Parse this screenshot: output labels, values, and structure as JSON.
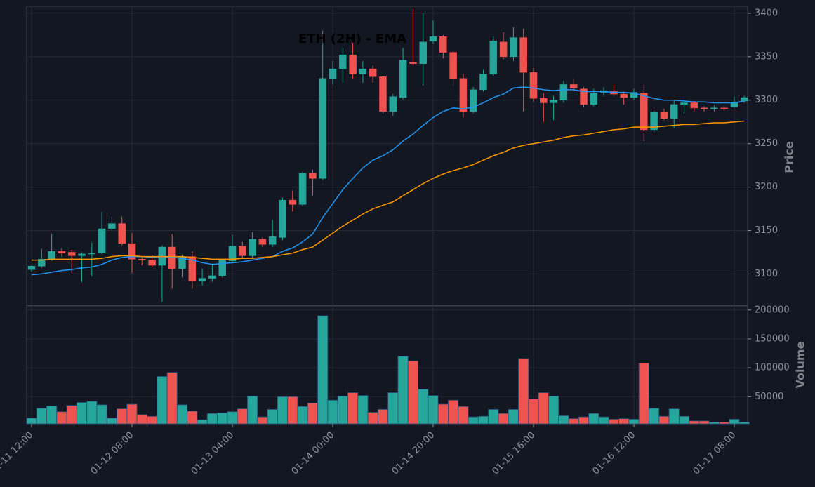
{
  "chart_data": {
    "type": "candlestick",
    "title": "ETH (2H) - EMA",
    "ylabel": "Price",
    "categories": [
      "01-11 12:00",
      null,
      null,
      null,
      null,
      null,
      null,
      null,
      null,
      null,
      "01-12 08:00",
      null,
      null,
      null,
      null,
      null,
      null,
      null,
      null,
      null,
      "01-13 04:00",
      null,
      null,
      null,
      null,
      null,
      null,
      null,
      null,
      null,
      "01-14 00:00",
      null,
      null,
      null,
      null,
      null,
      null,
      null,
      null,
      null,
      "01-14 20:00",
      null,
      null,
      null,
      null,
      null,
      null,
      null,
      null,
      null,
      "01-15 16:00",
      null,
      null,
      null,
      null,
      null,
      null,
      null,
      null,
      null,
      "01-16 12:00",
      null,
      null,
      null,
      null,
      null,
      null,
      null,
      null,
      null,
      "01-17 08:00",
      null
    ],
    "open": [
      3105,
      3109,
      3117,
      3126,
      3125,
      3121,
      3123,
      3124,
      3152,
      3158,
      3135,
      3117,
      3116,
      3110,
      3131,
      3106,
      3120,
      3092,
      3095,
      3098,
      3115,
      3132,
      3121,
      3140,
      3134,
      3142,
      3185,
      3180,
      3216,
      3210,
      3325,
      3336,
      3352,
      3330,
      3336,
      3327,
      3287,
      3303,
      3344,
      3342,
      3368,
      3373,
      3355,
      3325,
      3287,
      3312,
      3330,
      3367,
      3350,
      3372,
      3332,
      3302,
      3297,
      3300,
      3318,
      3313,
      3295,
      3309,
      3310,
      3307,
      3303,
      3308,
      3266,
      3286,
      3279,
      3295,
      3297,
      3291,
      3290,
      3291,
      3292,
      3299
    ],
    "high": [
      3110,
      3129,
      3146,
      3130,
      3128,
      3125,
      3136,
      3171,
      3166,
      3166,
      3147,
      3119,
      3122,
      3133,
      3146,
      3122,
      3126,
      3106,
      3112,
      3117,
      3145,
      3137,
      3148,
      3142,
      3162,
      3188,
      3196,
      3218,
      3220,
      3380,
      3345,
      3360,
      3370,
      3345,
      3340,
      3328,
      3307,
      3360,
      3405,
      3400,
      3392,
      3375,
      3356,
      3330,
      3315,
      3335,
      3373,
      3378,
      3384,
      3382,
      3337,
      3308,
      3305,
      3322,
      3325,
      3315,
      3313,
      3315,
      3318,
      3310,
      3313,
      3318,
      3288,
      3290,
      3300,
      3300,
      3299,
      3293,
      3294,
      3293,
      3304,
      3305
    ],
    "low": [
      3103,
      3107,
      3115,
      3120,
      3101,
      3091,
      3097,
      3123,
      3150,
      3133,
      3101,
      3110,
      3108,
      3068,
      3083,
      3096,
      3083,
      3087,
      3091,
      3096,
      3112,
      3118,
      3118,
      3131,
      3131,
      3139,
      3172,
      3178,
      3190,
      3208,
      3318,
      3320,
      3325,
      3320,
      3320,
      3285,
      3282,
      3301,
      3340,
      3317,
      3365,
      3348,
      3318,
      3280,
      3285,
      3310,
      3328,
      3347,
      3345,
      3287,
      3298,
      3275,
      3277,
      3297,
      3310,
      3292,
      3293,
      3305,
      3305,
      3295,
      3300,
      3253,
      3262,
      3277,
      3268,
      3285,
      3287,
      3287,
      3287,
      3288,
      3291,
      3297
    ],
    "close": [
      3109,
      3117,
      3126,
      3124,
      3121,
      3123,
      3124,
      3152,
      3158,
      3135,
      3117,
      3116,
      3110,
      3131,
      3106,
      3120,
      3092,
      3095,
      3098,
      3116,
      3132,
      3121,
      3140,
      3134,
      3143,
      3185,
      3180,
      3216,
      3210,
      3325,
      3336,
      3352,
      3330,
      3336,
      3327,
      3287,
      3304,
      3346,
      3342,
      3367,
      3373,
      3355,
      3325,
      3287,
      3312,
      3330,
      3368,
      3350,
      3372,
      3332,
      3302,
      3297,
      3300,
      3318,
      3314,
      3295,
      3308,
      3311,
      3307,
      3303,
      3309,
      3266,
      3286,
      3279,
      3295,
      3297,
      3291,
      3290,
      3291,
      3290,
      3298,
      3303
    ],
    "up_color": "#26a69a",
    "down_color": "#ef5350",
    "lines": [
      {
        "color": "#2196f3",
        "values": [
          3099,
          3100,
          3102,
          3104,
          3105,
          3107,
          3108,
          3111,
          3116,
          3119,
          3120,
          3120,
          3119,
          3120,
          3119,
          3118,
          3116,
          3113,
          3111,
          3112,
          3113,
          3114,
          3116,
          3118,
          3120,
          3126,
          3130,
          3137,
          3146,
          3165,
          3181,
          3197,
          3210,
          3222,
          3231,
          3236,
          3243,
          3253,
          3261,
          3271,
          3280,
          3287,
          3291,
          3290,
          3292,
          3297,
          3303,
          3307,
          3314,
          3315,
          3314,
          3312,
          3311,
          3312,
          3312,
          3310,
          3310,
          3310,
          3309,
          3309,
          3308,
          3305,
          3302,
          3300,
          3300,
          3299,
          3298,
          3298,
          3297,
          3297,
          3297,
          3299
        ]
      },
      {
        "color": "#ff9800",
        "values": [
          3116,
          3116,
          3117,
          3117,
          3117,
          3117,
          3117,
          3118,
          3120,
          3121,
          3121,
          3120,
          3120,
          3120,
          3120,
          3120,
          3119,
          3118,
          3117,
          3117,
          3117,
          3118,
          3118,
          3119,
          3120,
          3122,
          3124,
          3128,
          3131,
          3139,
          3147,
          3155,
          3162,
          3169,
          3175,
          3179,
          3183,
          3190,
          3197,
          3204,
          3210,
          3215,
          3219,
          3222,
          3226,
          3231,
          3236,
          3240,
          3245,
          3248,
          3250,
          3252,
          3254,
          3257,
          3259,
          3260,
          3262,
          3264,
          3266,
          3267,
          3269,
          3269,
          3269,
          3270,
          3271,
          3272,
          3272,
          3273,
          3274,
          3274,
          3275,
          3276
        ]
      }
    ],
    "ylim": [
      3064,
      3408
    ],
    "yticks": [
      3100,
      3150,
      3200,
      3250,
      3300,
      3350,
      3400
    ],
    "grid": true,
    "volume": {
      "ylabel": "Volume",
      "ylim": [
        3000,
        207000
      ],
      "yticks": [
        50000,
        100000,
        150000,
        200000
      ],
      "values": [
        13000,
        30000,
        34000,
        24000,
        35000,
        40000,
        42000,
        36000,
        13000,
        29000,
        37000,
        19000,
        16000,
        85000,
        92000,
        36000,
        25000,
        10000,
        21000,
        22000,
        24000,
        29000,
        51000,
        15000,
        28000,
        50000,
        50000,
        33000,
        39000,
        190000,
        44000,
        51000,
        57000,
        52000,
        23000,
        28000,
        57000,
        120000,
        112000,
        63000,
        52000,
        37000,
        44000,
        33000,
        15000,
        16000,
        28000,
        21000,
        28000,
        116000,
        46000,
        57000,
        51000,
        17000,
        12000,
        15000,
        21000,
        15000,
        11000,
        12000,
        11000,
        108000,
        30000,
        16000,
        29000,
        16000,
        8000,
        8000,
        6000,
        6000,
        11000,
        6000
      ]
    }
  }
}
